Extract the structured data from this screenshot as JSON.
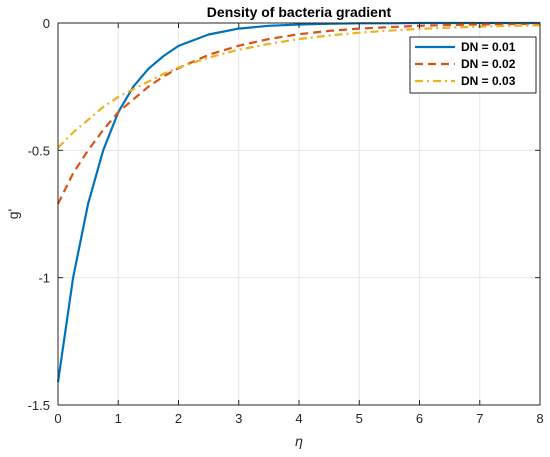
{
  "chart_data": {
    "type": "line",
    "title": "Density of bacteria gradient",
    "xlabel": "η",
    "ylabel": "g'",
    "xlim": [
      0,
      8
    ],
    "ylim": [
      -1.5,
      0
    ],
    "x_ticks": [
      "0",
      "1",
      "2",
      "3",
      "4",
      "5",
      "6",
      "7",
      "8"
    ],
    "y_ticks": [
      "0",
      "-0.5",
      "-1",
      "-1.5"
    ],
    "grid": true,
    "legend_position": "top-right",
    "series": [
      {
        "name": "DN = 0.01",
        "color": "#0072BD",
        "style": "solid",
        "x": [
          0,
          0.25,
          0.5,
          0.75,
          1,
          1.25,
          1.5,
          1.75,
          2,
          2.5,
          3,
          3.5,
          4,
          4.5,
          5,
          5.5,
          6,
          6.5,
          7,
          7.5,
          8
        ],
        "y": [
          -1.41,
          -1.0,
          -0.71,
          -0.5,
          -0.35,
          -0.25,
          -0.18,
          -0.13,
          -0.09,
          -0.045,
          -0.022,
          -0.011,
          -0.006,
          -0.003,
          -0.001,
          -0.001,
          0,
          0,
          0,
          0,
          0
        ]
      },
      {
        "name": "DN = 0.02",
        "color": "#D95319",
        "style": "dashed",
        "x": [
          0,
          0.25,
          0.5,
          0.75,
          1,
          1.25,
          1.5,
          1.75,
          2,
          2.5,
          3,
          3.5,
          4,
          4.5,
          5,
          5.5,
          6,
          6.5,
          7,
          7.5,
          8
        ],
        "y": [
          -0.71,
          -0.59,
          -0.5,
          -0.42,
          -0.35,
          -0.3,
          -0.25,
          -0.21,
          -0.177,
          -0.125,
          -0.089,
          -0.063,
          -0.044,
          -0.031,
          -0.022,
          -0.016,
          -0.011,
          -0.008,
          -0.006,
          -0.004,
          -0.003
        ]
      },
      {
        "name": "DN = 0.03",
        "color": "#EDB120",
        "style": "dashdot",
        "x": [
          0,
          0.25,
          0.5,
          0.75,
          1,
          1.25,
          1.5,
          1.75,
          2,
          2.5,
          3,
          3.5,
          4,
          4.5,
          5,
          5.5,
          6,
          6.5,
          7,
          7.5,
          8
        ],
        "y": [
          -0.49,
          -0.43,
          -0.38,
          -0.33,
          -0.29,
          -0.26,
          -0.23,
          -0.2,
          -0.175,
          -0.136,
          -0.105,
          -0.082,
          -0.063,
          -0.049,
          -0.038,
          -0.03,
          -0.023,
          -0.018,
          -0.014,
          -0.011,
          -0.009
        ]
      }
    ]
  }
}
